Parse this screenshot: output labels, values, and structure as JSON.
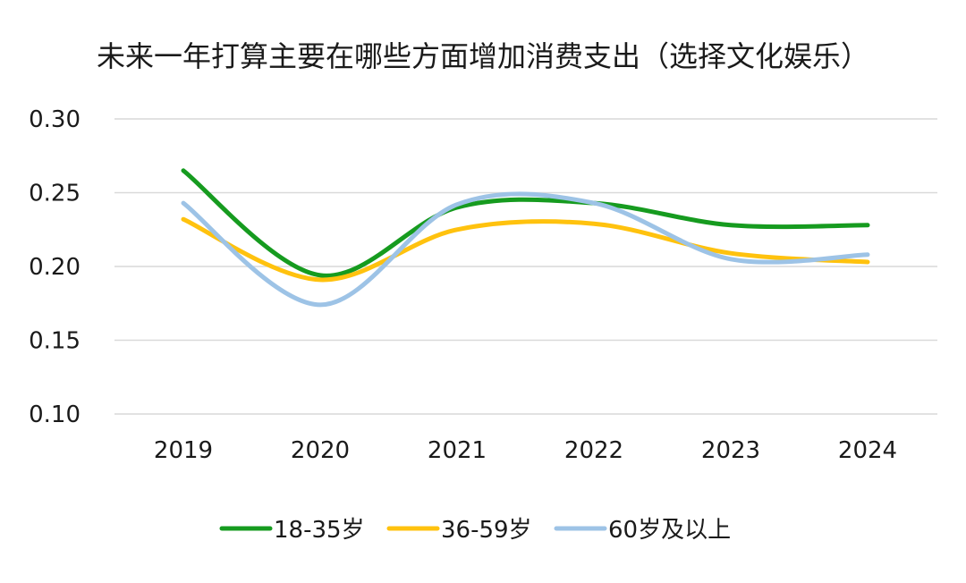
{
  "chart_data": {
    "type": "line",
    "title": "未来一年打算主要在哪些方面增加消费支出（选择文化娱乐）",
    "xlabel": "",
    "ylabel": "",
    "categories": [
      "2019",
      "2020",
      "2021",
      "2022",
      "2023",
      "2024"
    ],
    "y_ticks": [
      "0.10",
      "0.15",
      "0.20",
      "0.25",
      "0.30"
    ],
    "ylim": [
      0.1,
      0.3
    ],
    "grid": true,
    "smooth": true,
    "legend_position": "bottom",
    "series": [
      {
        "name": "18-35岁",
        "color": "#169B1F",
        "values": [
          0.265,
          0.194,
          0.24,
          0.243,
          0.228,
          0.228
        ]
      },
      {
        "name": "36-59岁",
        "color": "#FFC20E",
        "values": [
          0.232,
          0.191,
          0.225,
          0.229,
          0.209,
          0.203
        ]
      },
      {
        "name": "60岁及以上",
        "color": "#9DC3E6",
        "values": [
          0.243,
          0.174,
          0.242,
          0.243,
          0.205,
          0.208
        ]
      }
    ]
  }
}
